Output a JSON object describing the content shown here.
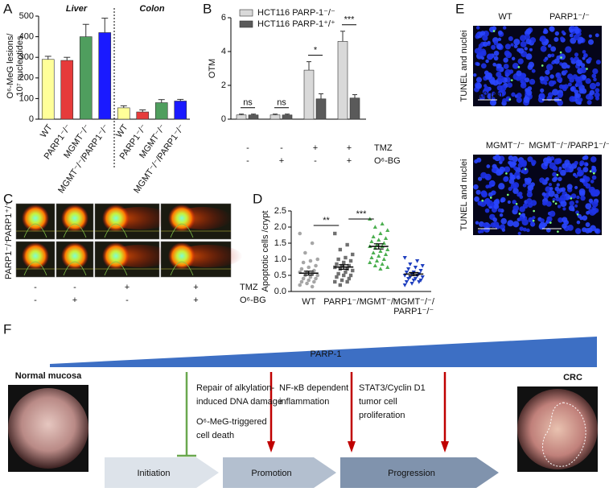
{
  "panels": [
    "A",
    "B",
    "C",
    "D",
    "E",
    "F"
  ],
  "chart_data": [
    {
      "type": "bar",
      "groups": [
        "Liver",
        "Colon"
      ],
      "categories": [
        "WT",
        "PARP1⁻/⁻",
        "MGMT⁻/⁻",
        "MGMT⁻/⁻/PARP1⁻/⁻",
        "WT",
        "PARP1⁻/⁻",
        "MGMT⁻/⁻",
        "MGMT⁻/⁻/PARP1⁻/⁻"
      ],
      "values": [
        290,
        285,
        400,
        420,
        55,
        35,
        80,
        88
      ],
      "errors": [
        15,
        15,
        60,
        70,
        10,
        10,
        15,
        8
      ],
      "colors": [
        "#ffff99",
        "#e63b3b",
        "#4f9e5e",
        "#1a1aff",
        "#ffff99",
        "#e63b3b",
        "#4f9e5e",
        "#1a1aff"
      ],
      "ylabel": [
        "O⁶-MeG lesions/",
        "10⁷ nucleotides"
      ],
      "ylim": [
        0,
        500
      ],
      "yticks": [
        0,
        100,
        200,
        300,
        400,
        500
      ]
    },
    {
      "type": "bar",
      "ylabel": "OTM",
      "series": [
        {
          "name": "HCT116 PARP-1⁻/⁻",
          "color": "#d9d9d9",
          "values": [
            0.25,
            0.25,
            2.9,
            4.6
          ],
          "errors": [
            0.05,
            0.05,
            0.5,
            0.6
          ]
        },
        {
          "name": "HCT116 PARP-1⁺/⁺",
          "color": "#5a5a5a",
          "values": [
            0.25,
            0.25,
            1.2,
            1.25
          ],
          "errors": [
            0.05,
            0.05,
            0.3,
            0.2
          ]
        }
      ],
      "significance": [
        "ns",
        "ns",
        "*",
        "***"
      ],
      "conditions": [
        {
          "name": "TMZ",
          "values": [
            "-",
            "-",
            "+",
            "+"
          ]
        },
        {
          "name": "O⁶-BG",
          "values": [
            "-",
            "+",
            "-",
            "+"
          ]
        }
      ],
      "ylim": [
        0,
        6
      ],
      "yticks": [
        0,
        2,
        4,
        6
      ]
    },
    {
      "type": "scatter",
      "ylabel": "Apoptotic cells /crypt",
      "categories": [
        "WT",
        "PARP1⁻/⁻",
        "MGMT⁻/⁻",
        [
          "MGMT⁻/⁻/",
          "PARP1⁻/⁻"
        ]
      ],
      "series": [
        {
          "color": "#a6a6a6",
          "marker": "circle",
          "values": [
            1.8,
            1.5,
            1.2,
            1.0,
            0.95,
            0.9,
            0.8,
            0.75,
            0.7,
            0.65,
            0.6,
            0.6,
            0.55,
            0.5,
            0.5,
            0.45,
            0.4,
            0.4,
            0.35,
            0.3,
            0.3,
            0.25,
            0.2,
            0.15
          ],
          "mean": 0.57,
          "sem": 0.06
        },
        {
          "color": "#707070",
          "marker": "square",
          "values": [
            1.8,
            1.45,
            1.3,
            1.15,
            1.05,
            1.0,
            0.95,
            0.9,
            0.85,
            0.8,
            0.8,
            0.75,
            0.7,
            0.7,
            0.65,
            0.6,
            0.55,
            0.5,
            0.5,
            0.45,
            0.4,
            0.35,
            0.3,
            0.3,
            0.2
          ],
          "mean": 0.76,
          "sem": 0.07
        },
        {
          "color": "#4caf50",
          "marker": "triangle",
          "values": [
            2.25,
            2.1,
            2.0,
            1.9,
            1.8,
            1.7,
            1.65,
            1.6,
            1.55,
            1.5,
            1.45,
            1.4,
            1.4,
            1.35,
            1.3,
            1.25,
            1.2,
            1.15,
            1.1,
            1.05,
            1.0,
            0.95,
            0.9,
            0.85,
            0.8,
            0.75,
            0.7
          ],
          "mean": 1.4,
          "sem": 0.08
        },
        {
          "color": "#1f3fbf",
          "marker": "triangle-down",
          "values": [
            1.05,
            0.95,
            0.85,
            0.8,
            0.75,
            0.7,
            0.65,
            0.6,
            0.6,
            0.55,
            0.55,
            0.5,
            0.5,
            0.45,
            0.45,
            0.4,
            0.4,
            0.35,
            0.35,
            0.3,
            0.3,
            0.25,
            0.2
          ],
          "mean": 0.54,
          "sem": 0.05
        }
      ],
      "significance": [
        null,
        "**",
        "***"
      ],
      "ylim": [
        0,
        2.5
      ],
      "yticks": [
        {
          "value": 0,
          "label": "0.0"
        },
        0.5,
        {
          "value": 1,
          "label": "1.0"
        },
        1.5,
        {
          "value": 2,
          "label": "2.0"
        },
        2.5
      ]
    }
  ],
  "comet_assay": {
    "rows": [
      "PARP1⁺/⁺",
      "PARP1⁻/⁻"
    ],
    "conditions": [
      {
        "name": "TMZ",
        "values": [
          "-",
          "-",
          "+",
          "+"
        ]
      },
      {
        "name": "O⁶-BG",
        "values": [
          "-",
          "+",
          "-",
          "+"
        ]
      }
    ]
  },
  "tunel": {
    "titles": [
      "WT",
      "PARP1⁻/⁻",
      "MGMT⁻/⁻",
      "MGMT⁻/⁻/PARP1⁻/⁻"
    ],
    "side_labels": [
      "TUNEL and nuclei",
      "TUNEL and nuclei"
    ],
    "scale_bar": "10 µm"
  },
  "diagram": {
    "gradient_label": "PARP-1",
    "left_image_label": "Normal mucosa",
    "right_image_label": "CRC",
    "stages": [
      "Initiation",
      "Promotion",
      "Progression"
    ],
    "effects": [
      [
        "Repair of alkylation-",
        "induced DNA damage"
      ],
      [
        "O⁶-MeG-triggered",
        "cell death"
      ],
      [
        "NF-κB dependent",
        "inflammation"
      ],
      [
        "STAT3/Cyclin D1",
        "tumor cell",
        "proliferation"
      ]
    ]
  }
}
